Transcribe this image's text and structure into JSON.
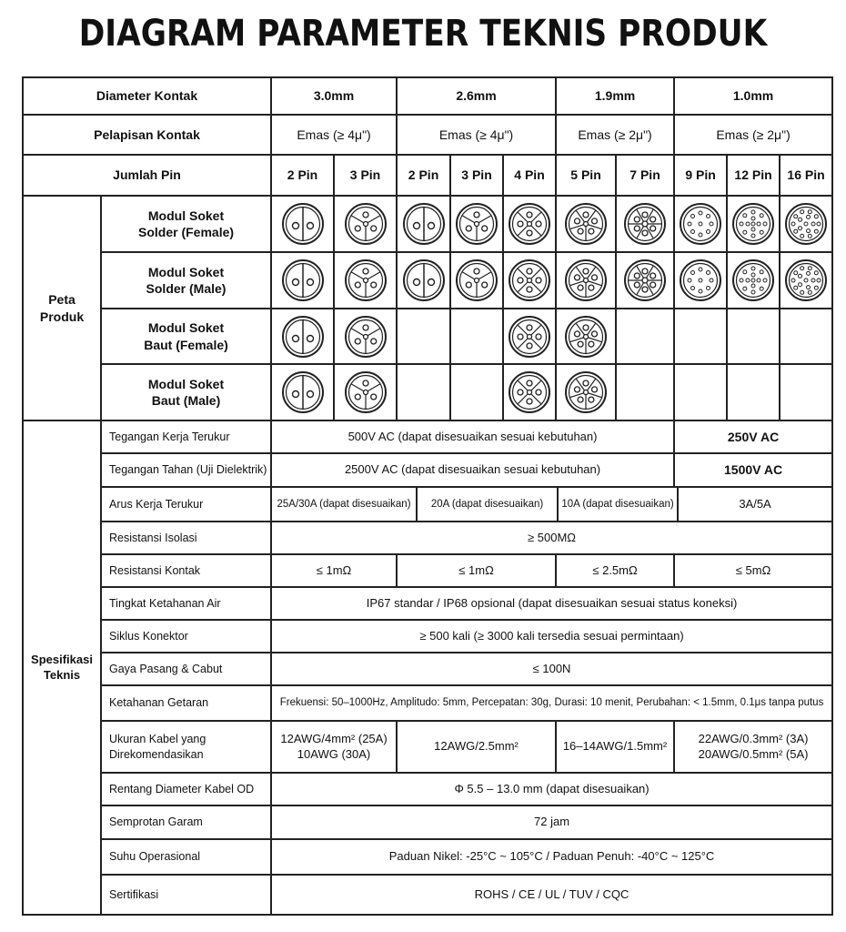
{
  "title": "DIAGRAM PARAMETER TEKNIS PRODUK",
  "header": {
    "diameter_label": "Diameter Kontak",
    "diameters": [
      "3.0mm",
      "2.6mm",
      "1.9mm",
      "1.0mm"
    ],
    "plating_label": "Pelapisan Kontak",
    "platings": [
      "Emas (≥ 4μ\")",
      "Emas (≥ 4μ\")",
      "Emas (≥ 2μ\")",
      "Emas (≥ 2μ\")"
    ],
    "pins_label": "Jumlah Pin",
    "pins": [
      "2 Pin",
      "3 Pin",
      "2 Pin",
      "3 Pin",
      "4 Pin",
      "5 Pin",
      "7 Pin",
      "9 Pin",
      "12 Pin",
      "16 Pin"
    ]
  },
  "product_map": {
    "label": "Peta Produk",
    "rows": [
      {
        "label": "Modul Soket Solder (Female)",
        "pins": [
          2,
          3,
          2,
          3,
          4,
          5,
          7,
          9,
          12,
          16
        ]
      },
      {
        "label": "Modul Soket Solder (Male)",
        "pins": [
          2,
          3,
          2,
          3,
          4,
          5,
          7,
          9,
          12,
          16
        ]
      },
      {
        "label": "Modul Soket Baut (Female)",
        "pins": [
          2,
          3,
          null,
          null,
          4,
          5,
          null,
          null,
          null,
          null
        ]
      },
      {
        "label": "Modul Soket Baut (Male)",
        "pins": [
          2,
          3,
          null,
          null,
          4,
          5,
          null,
          null,
          null,
          null
        ]
      }
    ]
  },
  "specs": {
    "label": "Spesifikasi Teknis",
    "rated_voltage": {
      "label": "Tegangan Kerja Terukur",
      "main": "500V AC (dapat disesuaikan sesuai kebutuhan)",
      "small": "250V AC"
    },
    "withstand_voltage": {
      "label": "Tegangan Tahan (Uji Dielektrik)",
      "main": "2500V AC (dapat disesuaikan sesuai kebutuhan)",
      "small": "1500V AC"
    },
    "rated_current": {
      "label": "Arus Kerja Terukur",
      "values": [
        "25A/30A (dapat disesuaikan)",
        "20A (dapat disesuaikan)",
        "10A (dapat disesuaikan)",
        "3A/5A"
      ]
    },
    "insulation": {
      "label": "Resistansi Isolasi",
      "value": "≥ 500MΩ"
    },
    "contact_resistance": {
      "label": "Resistansi Kontak",
      "values": [
        "≤ 1mΩ",
        "≤ 1mΩ",
        "≤ 2.5mΩ",
        "≤ 5mΩ"
      ]
    },
    "waterproof": {
      "label": "Tingkat Ketahanan Air",
      "value": "IP67 standar / IP68 opsional  (dapat disesuaikan sesuai status koneksi)"
    },
    "cycles": {
      "label": "Siklus Konektor",
      "value": "≥ 500 kali (≥ 3000 kali tersedia sesuai permintaan)"
    },
    "force": {
      "label": "Gaya Pasang & Cabut",
      "value": "≤ 100N"
    },
    "vibration": {
      "label": "Ketahanan Getaran",
      "value": "Frekuensi: 50–1000Hz, Amplitudo: 5mm, Percepatan: 30g, Durasi: 10 menit, Perubahan: < 1.5mm, 0.1μs tanpa putus"
    },
    "cable": {
      "label": "Ukuran Kabel yang Direkomendasikan",
      "values": [
        [
          "12AWG/4mm² (25A)",
          "10AWG (30A)"
        ],
        [
          "12AWG/2.5mm²"
        ],
        [
          "16–14AWG/1.5mm²"
        ],
        [
          "22AWG/0.3mm² (3A)",
          "20AWG/0.5mm² (5A)"
        ]
      ]
    },
    "od": {
      "label": "Rentang Diameter Kabel OD",
      "value": "Φ 5.5 – 13.0 mm (dapat disesuaikan)"
    },
    "salt": {
      "label": "Semprotan Garam",
      "value": "72 jam"
    },
    "temp": {
      "label": "Suhu Operasional",
      "value": "Paduan Nikel: -25°C ~ 105°C / Paduan Penuh: -40°C ~ 125°C"
    },
    "cert": {
      "label": "Sertifikasi",
      "value": "ROHS / CE / UL / TUV / CQC"
    }
  }
}
